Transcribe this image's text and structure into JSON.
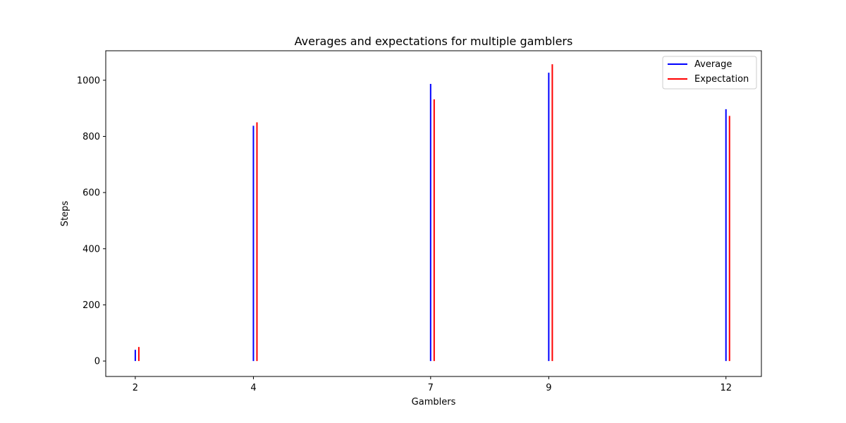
{
  "chart_data": {
    "type": "bar",
    "title": "Averages and expectations for multiple gamblers",
    "xlabel": "Gamblers",
    "ylabel": "Steps",
    "x": [
      2,
      4,
      7,
      9,
      12
    ],
    "x_tick_labels": [
      "2",
      "4",
      "7",
      "9",
      "12"
    ],
    "xlim": [
      1.5,
      12.6
    ],
    "ylim": [
      -55,
      1105
    ],
    "y_ticks": [
      0,
      200,
      400,
      600,
      800,
      1000
    ],
    "y_tick_labels": [
      "0",
      "200",
      "400",
      "600",
      "800",
      "1000"
    ],
    "series": [
      {
        "name": "Average",
        "color": "#0000ff",
        "values": [
          40,
          838,
          987,
          1027,
          897
        ]
      },
      {
        "name": "Expectation",
        "color": "#ff0000",
        "values": [
          50,
          850,
          932,
          1057,
          873
        ]
      }
    ],
    "legend_position": "top-right",
    "grid": false
  }
}
